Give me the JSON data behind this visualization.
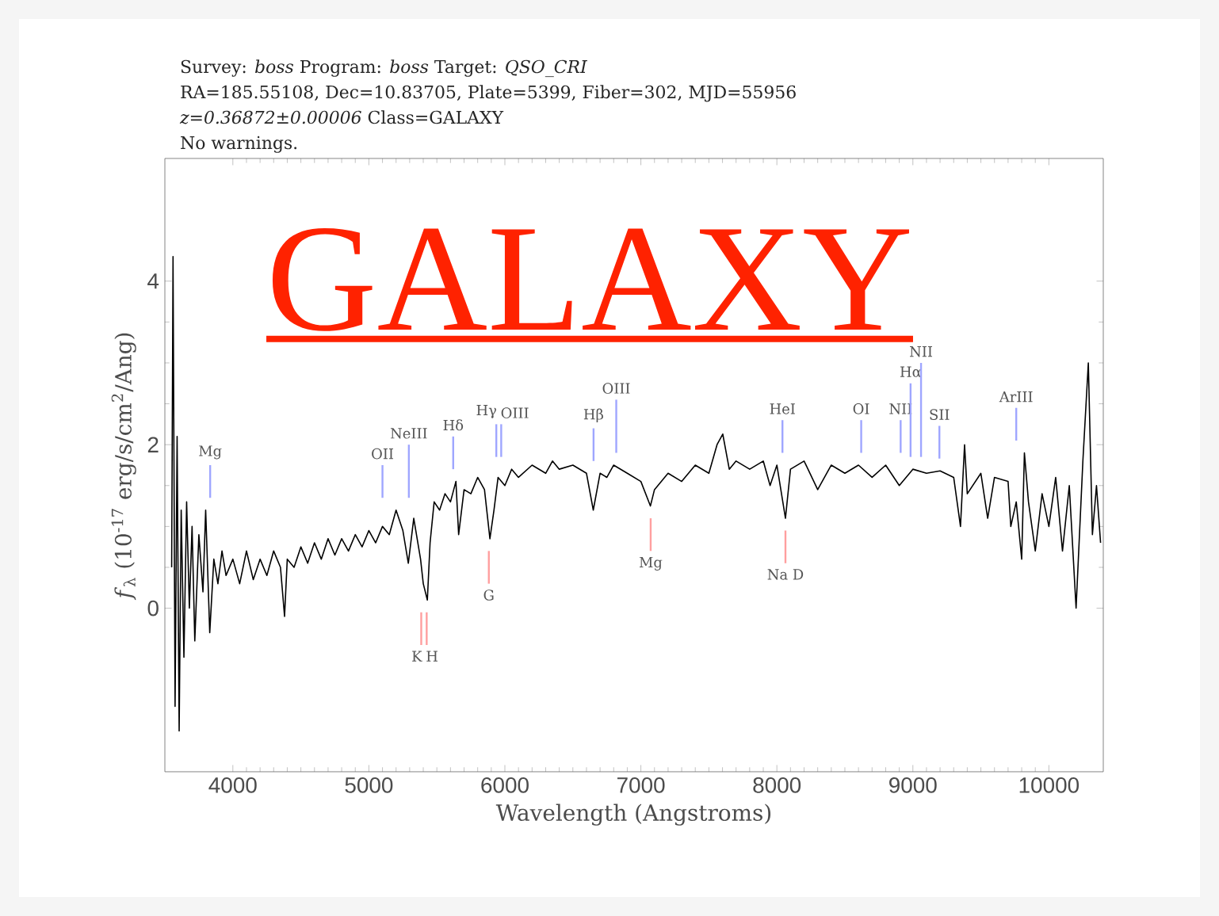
{
  "chart_data": {
    "type": "line",
    "title": "Survey: *boss* Program: *boss* Target:  *QSO_CRI*",
    "subtitle": "RA=185.55108, Dec=10.83705, Plate=5399, Fiber=302, MJD=55956",
    "xlabel": "Wavelength (Angstroms)",
    "ylabel": "*f*$_{λ}$ (10$^{-17}$ erg/s/cm$^{2}$/Ang)",
    "xlim": [
      3500,
      10400
    ],
    "ylim": [
      -2,
      5.5
    ],
    "xticks": [
      4000,
      5000,
      6000,
      7000,
      8000,
      9000,
      10000
    ],
    "yticks": [
      0,
      2,
      4
    ],
    "x": [
      3550,
      3560,
      3575,
      3590,
      3605,
      3620,
      3640,
      3660,
      3680,
      3700,
      3720,
      3750,
      3780,
      3800,
      3830,
      3860,
      3890,
      3920,
      3950,
      4000,
      4050,
      4100,
      4150,
      4200,
      4250,
      4300,
      4350,
      4380,
      4400,
      4450,
      4500,
      4550,
      4600,
      4650,
      4700,
      4750,
      4800,
      4850,
      4900,
      4950,
      5000,
      5050,
      5100,
      5150,
      5200,
      5250,
      5290,
      5330,
      5380,
      5400,
      5430,
      5450,
      5480,
      5520,
      5560,
      5600,
      5640,
      5660,
      5700,
      5750,
      5800,
      5850,
      5890,
      5920,
      5950,
      6000,
      6050,
      6100,
      6200,
      6300,
      6350,
      6400,
      6500,
      6600,
      6650,
      6700,
      6750,
      6800,
      6900,
      7000,
      7070,
      7100,
      7200,
      7300,
      7400,
      7500,
      7560,
      7602,
      7650,
      7700,
      7800,
      7900,
      7950,
      8000,
      8063,
      8100,
      8200,
      8300,
      8400,
      8500,
      8600,
      8700,
      8800,
      8900,
      9000,
      9100,
      9200,
      9300,
      9350,
      9380,
      9400,
      9500,
      9550,
      9600,
      9700,
      9720,
      9760,
      9800,
      9820,
      9850,
      9900,
      9950,
      10000,
      10050,
      10100,
      10150,
      10200,
      10250,
      10290,
      10320,
      10350,
      10380
    ],
    "series": [
      {
        "color": "#000000",
        "values": [
          0.5,
          4.3,
          -1.2,
          2.1,
          -1.5,
          1.2,
          -0.6,
          1.3,
          0.0,
          1.0,
          -0.4,
          0.9,
          0.2,
          1.2,
          -0.3,
          0.6,
          0.3,
          0.7,
          0.4,
          0.6,
          0.3,
          0.7,
          0.35,
          0.6,
          0.4,
          0.7,
          0.5,
          -0.1,
          0.6,
          0.5,
          0.75,
          0.55,
          0.8,
          0.6,
          0.85,
          0.65,
          0.85,
          0.7,
          0.9,
          0.75,
          0.95,
          0.8,
          1.0,
          0.9,
          1.2,
          0.95,
          0.55,
          1.1,
          0.6,
          0.3,
          0.1,
          0.8,
          1.3,
          1.2,
          1.4,
          1.3,
          1.55,
          0.9,
          1.45,
          1.4,
          1.6,
          1.45,
          0.85,
          1.2,
          1.6,
          1.5,
          1.7,
          1.6,
          1.75,
          1.65,
          1.8,
          1.7,
          1.75,
          1.65,
          1.2,
          1.65,
          1.6,
          1.75,
          1.65,
          1.55,
          1.25,
          1.45,
          1.65,
          1.55,
          1.75,
          1.65,
          2.0,
          2.13,
          1.7,
          1.8,
          1.7,
          1.8,
          1.5,
          1.75,
          1.1,
          1.7,
          1.8,
          1.45,
          1.75,
          1.65,
          1.75,
          1.6,
          1.75,
          1.5,
          1.7,
          1.65,
          1.68,
          1.6,
          1.0,
          2.0,
          1.4,
          1.65,
          1.1,
          1.6,
          1.55,
          1.0,
          1.3,
          0.6,
          1.9,
          1.3,
          0.7,
          1.4,
          1.0,
          1.6,
          0.7,
          1.5,
          0.0,
          1.8,
          3.0,
          0.9,
          1.5,
          0.8
        ]
      }
    ],
    "ref_lines": [
      {
        "axis": "x",
        "value": 3833,
        "label": "Mg",
        "color": "#9fa6ff"
      },
      {
        "axis": "x",
        "value": 5100,
        "label": "OII",
        "color": "#9fa6ff"
      },
      {
        "axis": "x",
        "value": 5294,
        "label": "NeIII",
        "color": "#9fa6ff"
      },
      {
        "axis": "x",
        "value": 5620,
        "label": "Hδ",
        "color": "#9fa6ff"
      },
      {
        "axis": "x",
        "value": 5937,
        "label": "Hγ",
        "color": "#9fa6ff"
      },
      {
        "axis": "x",
        "value": 5973,
        "label": "OIII",
        "color": "#9fa6ff"
      },
      {
        "axis": "x",
        "value": 6652,
        "label": "Hβ",
        "color": "#9fa6ff"
      },
      {
        "axis": "x",
        "value": 6819,
        "label": "OIII",
        "color": "#9fa6ff"
      },
      {
        "axis": "x",
        "value": 8041,
        "label": "HeI",
        "color": "#9fa6ff"
      },
      {
        "axis": "x",
        "value": 8620,
        "label": "OI",
        "color": "#9fa6ff"
      },
      {
        "axis": "x",
        "value": 8910,
        "label": "NII",
        "color": "#9fa6ff"
      },
      {
        "axis": "x",
        "value": 8983,
        "label": "Hα",
        "color": "#9fa6ff"
      },
      {
        "axis": "x",
        "value": 9060,
        "label": "NII",
        "color": "#9fa6ff"
      },
      {
        "axis": "x",
        "value": 9195,
        "label": "SII",
        "color": "#9fa6ff"
      },
      {
        "axis": "x",
        "value": 9760,
        "label": "ArIII",
        "color": "#9fa6ff"
      },
      {
        "axis": "x",
        "value": 5385,
        "label": "K",
        "color": "#ff9f9f"
      },
      {
        "axis": "x",
        "value": 5425,
        "label": "H",
        "color": "#ff9f9f"
      },
      {
        "axis": "x",
        "value": 5882,
        "label": "G",
        "color": "#ff9f9f"
      },
      {
        "axis": "x",
        "value": 7072,
        "label": "Mg",
        "color": "#ff9f9f"
      },
      {
        "axis": "x",
        "value": 8063,
        "label": "Na  D",
        "color": "#ff9f9f"
      }
    ],
    "annotations": [
      "*z=0.36872±0.00006* Class=GALAXY",
      "No warnings.",
      "GALAXY"
    ]
  }
}
